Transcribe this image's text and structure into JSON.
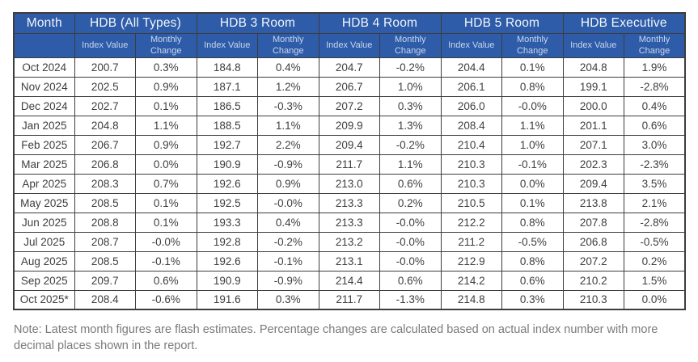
{
  "chart_data": {
    "type": "table",
    "columns": {
      "month": "Month",
      "groups": [
        "HDB (All Types)",
        "HDB 3 Room",
        "HDB 4 Room",
        "HDB 5 Room",
        "HDB Executive"
      ],
      "subheaders": {
        "index": "Index Value",
        "change": "Monthly Change"
      }
    },
    "rows": [
      {
        "month": "Oct 2024",
        "values": [
          "200.7",
          "0.3%",
          "184.8",
          "0.4%",
          "204.7",
          "-0.2%",
          "204.4",
          "0.1%",
          "204.8",
          "1.9%"
        ]
      },
      {
        "month": "Nov 2024",
        "values": [
          "202.5",
          "0.9%",
          "187.1",
          "1.2%",
          "206.7",
          "1.0%",
          "206.1",
          "0.8%",
          "199.1",
          "-2.8%"
        ]
      },
      {
        "month": "Dec 2024",
        "values": [
          "202.7",
          "0.1%",
          "186.5",
          "-0.3%",
          "207.2",
          "0.3%",
          "206.0",
          "-0.0%",
          "200.0",
          "0.4%"
        ]
      },
      {
        "month": "Jan 2025",
        "values": [
          "204.8",
          "1.1%",
          "188.5",
          "1.1%",
          "209.9",
          "1.3%",
          "208.4",
          "1.1%",
          "201.1",
          "0.6%"
        ]
      },
      {
        "month": "Feb 2025",
        "values": [
          "206.7",
          "0.9%",
          "192.7",
          "2.2%",
          "209.4",
          "-0.2%",
          "210.4",
          "1.0%",
          "207.1",
          "3.0%"
        ]
      },
      {
        "month": "Mar 2025",
        "values": [
          "206.8",
          "0.0%",
          "190.9",
          "-0.9%",
          "211.7",
          "1.1%",
          "210.3",
          "-0.1%",
          "202.3",
          "-2.3%"
        ]
      },
      {
        "month": "Apr 2025",
        "values": [
          "208.3",
          "0.7%",
          "192.6",
          "0.9%",
          "213.0",
          "0.6%",
          "210.3",
          "0.0%",
          "209.4",
          "3.5%"
        ]
      },
      {
        "month": "May 2025",
        "values": [
          "208.5",
          "0.1%",
          "192.5",
          "-0.0%",
          "213.3",
          "0.2%",
          "210.5",
          "0.1%",
          "213.8",
          "2.1%"
        ]
      },
      {
        "month": "Jun 2025",
        "values": [
          "208.8",
          "0.1%",
          "193.3",
          "0.4%",
          "213.3",
          "-0.0%",
          "212.2",
          "0.8%",
          "207.8",
          "-2.8%"
        ]
      },
      {
        "month": "Jul 2025",
        "values": [
          "208.7",
          "-0.0%",
          "192.8",
          "-0.2%",
          "213.2",
          "-0.0%",
          "211.2",
          "-0.5%",
          "206.8",
          "-0.5%"
        ]
      },
      {
        "month": "Aug 2025",
        "values": [
          "208.5",
          "-0.1%",
          "192.6",
          "-0.1%",
          "213.1",
          "-0.0%",
          "212.9",
          "0.8%",
          "207.2",
          "0.2%"
        ]
      },
      {
        "month": "Sep 2025",
        "values": [
          "209.7",
          "0.6%",
          "190.9",
          "-0.9%",
          "214.4",
          "0.6%",
          "214.2",
          "0.6%",
          "210.2",
          "1.5%"
        ]
      },
      {
        "month": "Oct 2025*",
        "values": [
          "208.4",
          "-0.6%",
          "191.6",
          "0.3%",
          "211.7",
          "-1.3%",
          "214.8",
          "0.3%",
          "210.3",
          "0.0%"
        ]
      }
    ]
  },
  "note": "Note: Latest month figures are flash estimates. Percentage changes are calculated based on actual index number with more decimal places shown in the report.",
  "colors": {
    "header_bg": "#2e5ca8",
    "header_text": "#f2f6fc",
    "subheader_text": "#c9d7ee",
    "border": "#3d3d3d",
    "cell_text": "#3e3e3e",
    "note_text": "#7a7a7a",
    "page_bg": "#ffffff"
  }
}
